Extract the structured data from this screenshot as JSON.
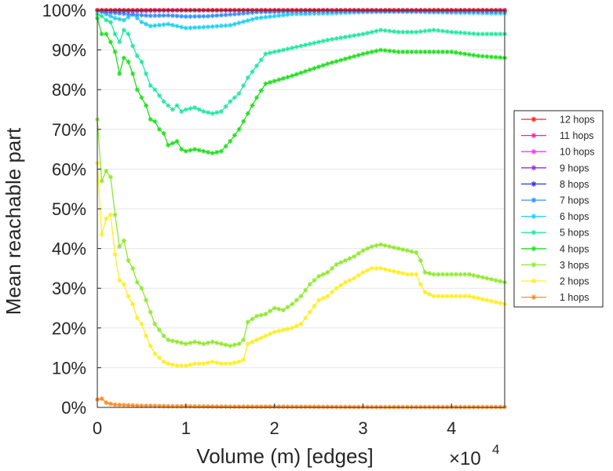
{
  "chart_data": {
    "type": "line",
    "xlabel": "Volume (m) [edges]",
    "ylabel": "Mean reachable part",
    "x_multiplier": {
      "base": "×10",
      "exponent": "4"
    },
    "xlim": [
      0,
      46000
    ],
    "ylim": [
      0,
      100
    ],
    "x_ticks": [
      {
        "value": 0,
        "label": "0"
      },
      {
        "value": 10000,
        "label": "1"
      },
      {
        "value": 20000,
        "label": "2"
      },
      {
        "value": 30000,
        "label": "3"
      },
      {
        "value": 40000,
        "label": "4"
      }
    ],
    "y_ticks": [
      {
        "value": 0,
        "label": "0%"
      },
      {
        "value": 10,
        "label": "10%"
      },
      {
        "value": 20,
        "label": "20%"
      },
      {
        "value": 30,
        "label": "30%"
      },
      {
        "value": 40,
        "label": "40%"
      },
      {
        "value": 50,
        "label": "50%"
      },
      {
        "value": 60,
        "label": "60%"
      },
      {
        "value": 70,
        "label": "70%"
      },
      {
        "value": 80,
        "label": "80%"
      },
      {
        "value": 90,
        "label": "90%"
      },
      {
        "value": 100,
        "label": "100%"
      }
    ],
    "grid": true,
    "legend_position": "right",
    "series": [
      {
        "name": "12 hops",
        "color": "#ff2020",
        "x": [
          0,
          46000
        ],
        "y": [
          100,
          100
        ]
      },
      {
        "name": "11 hops",
        "color": "#ff20a0",
        "x": [
          0,
          46000
        ],
        "y": [
          100,
          100
        ]
      },
      {
        "name": "10 hops",
        "color": "#ff30ff",
        "x": [
          0,
          46000
        ],
        "y": [
          100,
          100
        ]
      },
      {
        "name": "9 hops",
        "color": "#9030e0",
        "x": [
          0,
          46000
        ],
        "y": [
          100,
          100
        ]
      },
      {
        "name": "8 hops",
        "color": "#3030e0",
        "x": [
          0,
          3000,
          6000,
          10000,
          20000,
          46000
        ],
        "y": [
          100,
          99.8,
          99.9,
          100,
          100,
          100
        ]
      },
      {
        "name": "7 hops",
        "color": "#3090ff",
        "x": [
          0,
          1000,
          2500,
          4000,
          6000,
          8000,
          10000,
          12500,
          15000,
          18000,
          25000,
          35000,
          46000
        ],
        "y": [
          100,
          99.5,
          99.2,
          98.9,
          98.6,
          98.7,
          98.4,
          98.5,
          98.9,
          99.5,
          99.8,
          99.8,
          99.7
        ]
      },
      {
        "name": "6 hops",
        "color": "#20d0f0",
        "x": [
          0,
          1000,
          2000,
          3000,
          4000,
          5000,
          6000,
          8000,
          10000,
          12500,
          15000,
          18000,
          22000,
          26000,
          30000,
          34000,
          40000,
          46000
        ],
        "y": [
          100,
          99,
          98,
          97.5,
          99,
          97,
          96,
          96.5,
          95.5,
          95.8,
          96.2,
          98,
          99,
          99.2,
          99.5,
          99.6,
          99.4,
          99.2
        ]
      },
      {
        "name": "5 hops",
        "color": "#20e8a0",
        "x": [
          0,
          500,
          1000,
          1500,
          2000,
          2500,
          3000,
          3500,
          4000,
          4500,
          5000,
          5500,
          6000,
          6500,
          7000,
          7500,
          8000,
          8500,
          9000,
          9500,
          10000,
          11000,
          12000,
          13000,
          14000,
          15000,
          16000,
          17000,
          18000,
          19000,
          22000,
          26000,
          30000,
          32000,
          34000,
          36000,
          38000,
          40000,
          43000,
          46000
        ],
        "y": [
          99,
          98.5,
          97.5,
          97,
          94,
          92,
          95,
          94,
          91,
          88.5,
          87,
          84,
          81,
          80,
          78.5,
          77,
          76,
          75,
          76,
          74.5,
          75,
          75.5,
          74.5,
          74,
          74.5,
          77,
          79,
          83,
          86,
          89,
          90.5,
          92.5,
          94,
          95,
          94.5,
          94.5,
          95,
          94.5,
          94,
          94
        ]
      },
      {
        "name": "4 hops",
        "color": "#20e020",
        "x": [
          0,
          500,
          1000,
          1500,
          2000,
          2500,
          3000,
          3500,
          4000,
          4500,
          5000,
          5500,
          6000,
          6500,
          7000,
          7500,
          8000,
          8500,
          9000,
          9500,
          10000,
          11000,
          12000,
          13000,
          14000,
          15000,
          16000,
          17000,
          18000,
          19000,
          22000,
          26000,
          30000,
          32000,
          34000,
          36000,
          38000,
          40000,
          43000,
          46000
        ],
        "y": [
          98,
          94,
          94,
          92,
          89.5,
          84,
          88,
          87,
          84,
          80,
          78,
          76,
          72.5,
          72,
          70,
          69,
          66,
          66.5,
          67,
          65,
          64.5,
          65,
          64.5,
          64,
          64.5,
          67,
          70,
          74,
          78,
          81.5,
          83.5,
          86.5,
          89,
          90,
          89.5,
          89.5,
          89.5,
          89.5,
          88.5,
          88
        ]
      },
      {
        "name": "3 hops",
        "color": "#90e830",
        "x": [
          0,
          500,
          1000,
          1500,
          2000,
          2500,
          3000,
          3500,
          4000,
          4500,
          5000,
          5500,
          6000,
          6500,
          7000,
          7500,
          8000,
          9000,
          10000,
          11000,
          12000,
          13000,
          14000,
          15000,
          16000,
          16500,
          17000,
          18000,
          19000,
          20000,
          21000,
          22000,
          23000,
          24000,
          25000,
          26000,
          27000,
          28000,
          29000,
          30000,
          31000,
          32000,
          33000,
          34000,
          35000,
          36000,
          36500,
          37000,
          38000,
          40000,
          42000,
          44000,
          46000
        ],
        "y": [
          72.5,
          57,
          59.5,
          58,
          48.5,
          40.5,
          42,
          37,
          35,
          31.5,
          30,
          27,
          24,
          21,
          19.5,
          18,
          17,
          16.5,
          16,
          16.5,
          16,
          16.5,
          16,
          15.5,
          16,
          17,
          21.5,
          23,
          23.5,
          25,
          24.5,
          26,
          28,
          31,
          33,
          34,
          36,
          37,
          38,
          39.5,
          40.5,
          41,
          40.5,
          40,
          39.5,
          39,
          37,
          34,
          33.5,
          33.5,
          33.5,
          32.5,
          31.5
        ]
      },
      {
        "name": "2 hops",
        "color": "#ffee20",
        "x": [
          0,
          500,
          1000,
          1500,
          2000,
          2500,
          3000,
          3500,
          4000,
          4500,
          5000,
          5500,
          6000,
          6500,
          7000,
          7500,
          8000,
          9000,
          10000,
          11000,
          12000,
          13000,
          14000,
          15000,
          16000,
          16500,
          17000,
          18000,
          19000,
          20000,
          21000,
          22000,
          23000,
          24000,
          25000,
          26000,
          27000,
          28000,
          29000,
          30000,
          31000,
          32000,
          33000,
          34000,
          35000,
          36000,
          36500,
          37000,
          38000,
          40000,
          42000,
          44000,
          46000
        ],
        "y": [
          61.5,
          43.5,
          47.5,
          48.5,
          38.5,
          32,
          31,
          28,
          26,
          22.5,
          21,
          18,
          15.5,
          13.5,
          12.5,
          11.5,
          11,
          10.5,
          10.5,
          11,
          11,
          11.5,
          11,
          11,
          11.5,
          12,
          16,
          17,
          18,
          19,
          19.5,
          20,
          21,
          24,
          27,
          28,
          30,
          31.5,
          32.5,
          34,
          35,
          35,
          34.5,
          34,
          33.5,
          33.5,
          31,
          29,
          28,
          28,
          28,
          27,
          26
        ]
      },
      {
        "name": "1 hops",
        "color": "#ff8a20",
        "x": [
          0,
          500,
          1000,
          1500,
          2000,
          3000,
          4000,
          5000,
          6000,
          8000,
          10000,
          15000,
          20000,
          30000,
          40000,
          46000
        ],
        "y": [
          2,
          2.2,
          1.2,
          0.9,
          0.7,
          0.6,
          0.5,
          0.4,
          0.4,
          0.3,
          0.3,
          0.2,
          0.2,
          0.1,
          0.1,
          0.1
        ]
      }
    ]
  }
}
